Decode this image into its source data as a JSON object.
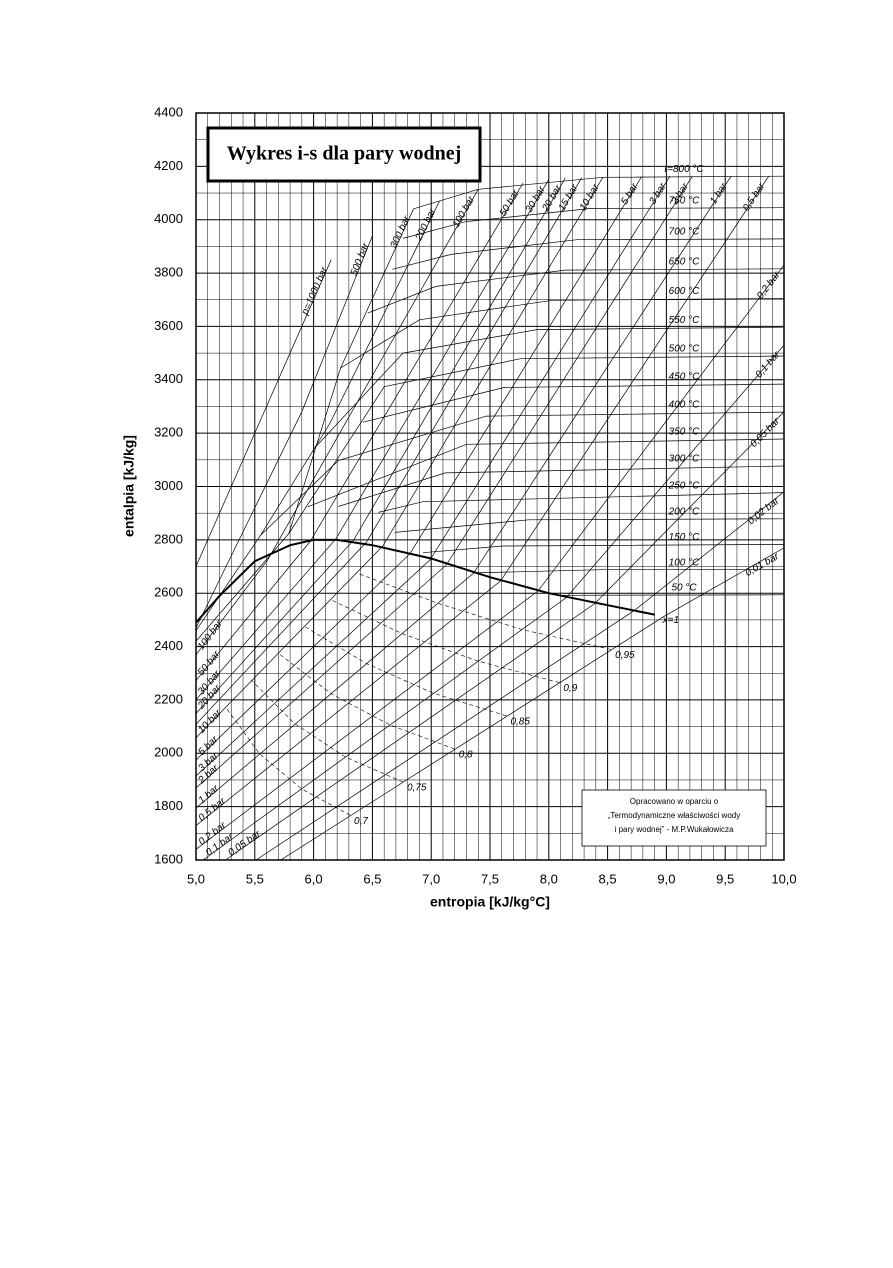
{
  "chart_data": {
    "type": "line",
    "title": "Wykres i-s dla pary wodnej",
    "x_label": "entropia [kJ/kg°C]",
    "y_label": "entalpia [kJ/kg]",
    "xlim": [
      5.0,
      10.0
    ],
    "ylim": [
      1600,
      4400
    ],
    "xticks": [
      {
        "value": 5.0,
        "label": "5,0"
      },
      {
        "value": 5.5,
        "label": "5,5"
      },
      {
        "value": 6.0,
        "label": "6,0"
      },
      {
        "value": 6.5,
        "label": "6,5"
      },
      {
        "value": 7.0,
        "label": "7,0"
      },
      {
        "value": 7.5,
        "label": "7,5"
      },
      {
        "value": 8.0,
        "label": "8,0"
      },
      {
        "value": 8.5,
        "label": "8,5"
      },
      {
        "value": 9.0,
        "label": "9,0"
      },
      {
        "value": 9.5,
        "label": "9,5"
      },
      {
        "value": 10.0,
        "label": "10,0"
      }
    ],
    "yticks": [
      1600,
      1800,
      2000,
      2200,
      2400,
      2600,
      2800,
      3000,
      3200,
      3400,
      3600,
      3800,
      4000,
      4200,
      4400
    ],
    "grid": true,
    "x_minor_grid": [
      5.1,
      5.2,
      5.3,
      5.4,
      5.6,
      5.7,
      5.8,
      5.9,
      6.1,
      6.2,
      6.3,
      6.4,
      6.6,
      6.7,
      6.8,
      6.9,
      7.1,
      7.2,
      7.3,
      7.4,
      7.6,
      7.7,
      7.8,
      7.9,
      8.1,
      8.2,
      8.3,
      8.4,
      8.6,
      8.7,
      8.8,
      8.9,
      9.1,
      9.2,
      9.3,
      9.4,
      9.6,
      9.7,
      9.8,
      9.9
    ],
    "y_minor_grid": [
      1700,
      1900,
      2100,
      2300,
      2500,
      2700,
      2900,
      3100,
      3300,
      3500,
      3700,
      3900,
      4100,
      4300
    ],
    "color": "#000000",
    "series": [
      {
        "name": "x=1",
        "x": [
          5.0,
          5.2,
          5.5,
          5.8,
          6.0,
          6.2,
          6.5,
          7.0,
          7.5,
          8.0,
          8.5,
          8.9
        ],
        "values": [
          2490,
          2590,
          2720,
          2780,
          2800,
          2800,
          2780,
          2730,
          2660,
          2600,
          2555,
          2520
        ]
      }
    ],
    "isobars": [
      {
        "name": "p=1000 bar",
        "x": [
          5.0,
          5.5,
          6.15
        ],
        "values": [
          2700,
          3200,
          3850
        ]
      },
      {
        "name": "500 bar",
        "x": [
          5.0,
          5.9,
          6.5
        ],
        "values": [
          2470,
          3280,
          3940
        ]
      },
      {
        "name": "300 bar",
        "x": [
          5.0,
          5.79,
          6.23,
          6.85
        ],
        "values": [
          2420,
          2824,
          3444,
          4041
        ]
      },
      {
        "name": "200 bar",
        "x": [
          5.0,
          5.55,
          6.14,
          7.07
        ],
        "values": [
          2460,
          2818,
          3238,
          4069
        ]
      },
      {
        "name": "100 bar",
        "wet_name": "100 bar",
        "x": [
          5.0,
          5.61,
          7.4
        ],
        "values": [
          2369,
          2725,
          4114
        ]
      },
      {
        "name": "50 bar",
        "wet_name": "50 bar",
        "x": [
          5.0,
          5.97,
          7.78
        ],
        "values": [
          2273,
          2794,
          4137
        ]
      },
      {
        "name": "30 bar",
        "wet_name": "30 bar",
        "x": [
          5.0,
          6.19,
          8.0
        ],
        "values": [
          2201,
          2804,
          4151
        ]
      },
      {
        "name": "20 bar",
        "wet_name": "20 bar",
        "x": [
          5.0,
          6.34,
          8.14
        ],
        "values": [
          2149,
          2799,
          4156
        ]
      },
      {
        "name": "15 bar",
        "x": [
          5.0,
          6.45,
          8.28
        ],
        "values": [
          2109,
          2792,
          4158
        ]
      },
      {
        "name": "10 bar",
        "wet_name": "10 bar",
        "x": [
          5.0,
          6.59,
          8.46
        ],
        "values": [
          2058,
          2778,
          4159
        ]
      },
      {
        "name": "5 bar",
        "wet_name": "5 bar",
        "x": [
          5.0,
          6.82,
          8.79
        ],
        "values": [
          1975,
          2748,
          4162
        ]
      },
      {
        "name": "3 bar",
        "wet_name": "3 bar",
        "x": [
          5.0,
          6.99,
          9.03
        ],
        "values": [
          1915,
          2725,
          4163
        ]
      },
      {
        "name": "2 bar",
        "wet_name": "2 bar",
        "x": [
          5.0,
          7.13,
          9.22
        ],
        "values": [
          1870,
          2707,
          4163
        ]
      },
      {
        "name": "1 bar",
        "wet_name": "1 bar",
        "x": [
          5.0,
          7.36,
          9.55
        ],
        "values": [
          1795,
          2675,
          4163
        ]
      },
      {
        "name": "0,5 bar",
        "wet_name": "0,5 bar",
        "x": [
          5.0,
          7.59,
          9.87
        ],
        "values": [
          1729,
          2646,
          4163
        ]
      },
      {
        "name": "0,2 bar",
        "wet_name": "0,2 bar",
        "x": [
          5.0,
          7.91,
          10.0
        ],
        "values": [
          1640,
          2609,
          3830
        ]
      },
      {
        "name": "0,1 bar",
        "wet_name": "0,1 bar",
        "x": [
          5.06,
          8.15,
          10.0
        ],
        "values": [
          1600,
          2584,
          3530
        ]
      },
      {
        "name": "0,05 bar",
        "wet_name": "0,05 bar",
        "x": [
          5.25,
          8.39,
          10.0
        ],
        "values": [
          1600,
          2561,
          3280
        ]
      },
      {
        "name": "0,02 bar",
        "x": [
          5.51,
          8.72,
          10.0
        ],
        "values": [
          1600,
          2533,
          2980
        ]
      },
      {
        "name": "0,01 bar",
        "x": [
          5.72,
          8.98,
          10.0
        ],
        "values": [
          1600,
          2513,
          2770
        ]
      }
    ],
    "isotherms": [
      {
        "name": "t=800 °C",
        "x": [
          6.85,
          7.4,
          8.46,
          10.0
        ],
        "values": [
          4041,
          4114,
          4159,
          4163
        ]
      },
      {
        "name": "750 °C",
        "x": [
          6.76,
          7.29,
          8.35,
          10.0
        ],
        "values": [
          3930,
          3992,
          4042,
          4045
        ]
      },
      {
        "name": "700 °C",
        "x": [
          6.67,
          7.17,
          8.24,
          10.0
        ],
        "values": [
          3814,
          3870,
          3925,
          3928
        ]
      },
      {
        "name": "650 °C",
        "x": [
          6.46,
          7.04,
          8.14,
          10.0
        ],
        "values": [
          3650,
          3750,
          3811,
          3816
        ]
      },
      {
        "name": "600 °C",
        "x": [
          6.23,
          6.9,
          8.03,
          10.0
        ],
        "values": [
          3444,
          3625,
          3698,
          3705
        ]
      },
      {
        "name": "550 °C",
        "x": [
          6.0,
          6.76,
          7.9,
          10.0
        ],
        "values": [
          3140,
          3500,
          3588,
          3597
        ]
      },
      {
        "name": "500 °C",
        "x": [
          5.79,
          6.6,
          7.76,
          10.0
        ],
        "values": [
          2824,
          3374,
          3479,
          3489
        ]
      },
      {
        "name": "450 °C",
        "x": [
          6.42,
          7.62,
          10.0
        ],
        "values": [
          3241,
          3371,
          3384
        ]
      },
      {
        "name": "400 °C",
        "x": [
          5.55,
          6.21,
          7.47,
          10.0
        ],
        "values": [
          2818,
          3097,
          3264,
          3279
        ]
      },
      {
        "name": "350 °C",
        "x": [
          5.95,
          7.3,
          10.0
        ],
        "values": [
          2924,
          3158,
          3178
        ]
      },
      {
        "name": "300 °C",
        "x": [
          6.21,
          7.12,
          10.0
        ],
        "values": [
          2925,
          3051,
          3077
        ]
      },
      {
        "name": "250 °C",
        "x": [
          6.55,
          6.93,
          10.0
        ],
        "values": [
          2903,
          2943,
          2977
        ]
      },
      {
        "name": "200 °C",
        "x": [
          6.69,
          7.83,
          10.0
        ],
        "values": [
          2828,
          2875,
          2879
        ]
      },
      {
        "name": "150 °C",
        "x": [
          6.93,
          7.61,
          10.0
        ],
        "values": [
          2752,
          2777,
          2783
        ]
      },
      {
        "name": "100 °C",
        "x": [
          7.36,
          8.45,
          10.0
        ],
        "values": [
          2676,
          2688,
          2688
        ]
      },
      {
        "name": "50 °C",
        "x": [
          8.07,
          10.0
        ],
        "values": [
          2592,
          2594
        ]
      }
    ],
    "quality_lines": [
      {
        "name": "0,95",
        "x": [
          8.53,
          7.77,
          7.06,
          6.36
        ],
        "values": [
          2389,
          2464,
          2562,
          2677
        ]
      },
      {
        "name": "0,9",
        "x": [
          8.09,
          7.4,
          6.75,
          6.14
        ],
        "values": [
          2265,
          2345,
          2449,
          2577
        ]
      },
      {
        "name": "0,85",
        "x": [
          7.64,
          7.02,
          6.45,
          5.92
        ],
        "values": [
          2140,
          2225,
          2336,
          2476
        ]
      },
      {
        "name": "0,8",
        "x": [
          7.2,
          6.65,
          6.15,
          5.7
        ],
        "values": [
          2016,
          2106,
          2223,
          2375
        ]
      },
      {
        "name": "0,75",
        "x": [
          6.76,
          6.27,
          5.84,
          5.47
        ],
        "values": [
          1892,
          1986,
          2111,
          2274
        ]
      },
      {
        "name": "0,7",
        "x": [
          6.31,
          5.9,
          5.54,
          5.25
        ],
        "values": [
          1768,
          1866,
          1998,
          2174
        ]
      }
    ],
    "note": [
      "Opracowano w oparciu o",
      "„Termodynamiczne właściwości wody",
      "i pary wodnej” - M.P.Wukałowicza"
    ]
  }
}
